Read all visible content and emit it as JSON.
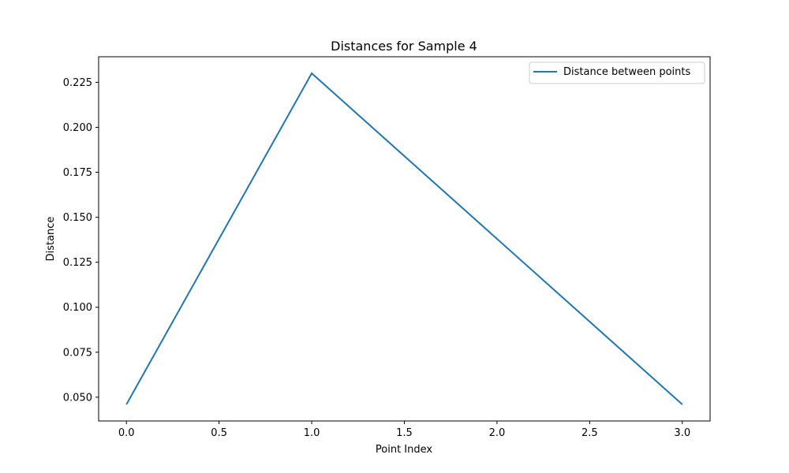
{
  "chart_data": {
    "type": "line",
    "title": "Distances for Sample 4",
    "xlabel": "Point Index",
    "ylabel": "Distance",
    "x": [
      0,
      1,
      2,
      3
    ],
    "series": [
      {
        "name": "Distance between points",
        "values": [
          0.046,
          0.23,
          0.138,
          0.046
        ]
      }
    ],
    "xlim": [
      -0.15,
      3.15
    ],
    "ylim": [
      0.0368,
      0.2392
    ],
    "xticks": [
      0.0,
      0.5,
      1.0,
      1.5,
      2.0,
      2.5,
      3.0
    ],
    "xtick_labels": [
      "0.0",
      "0.5",
      "1.0",
      "1.5",
      "2.0",
      "2.5",
      "3.0"
    ],
    "yticks": [
      0.05,
      0.075,
      0.1,
      0.125,
      0.15,
      0.175,
      0.2,
      0.225
    ],
    "ytick_labels": [
      "0.050",
      "0.075",
      "0.100",
      "0.125",
      "0.150",
      "0.175",
      "0.200",
      "0.225"
    ],
    "grid": false,
    "legend_position": "top-right",
    "colors": {
      "series": "#1f77b4",
      "axes": "#000000",
      "background": "#ffffff"
    }
  }
}
